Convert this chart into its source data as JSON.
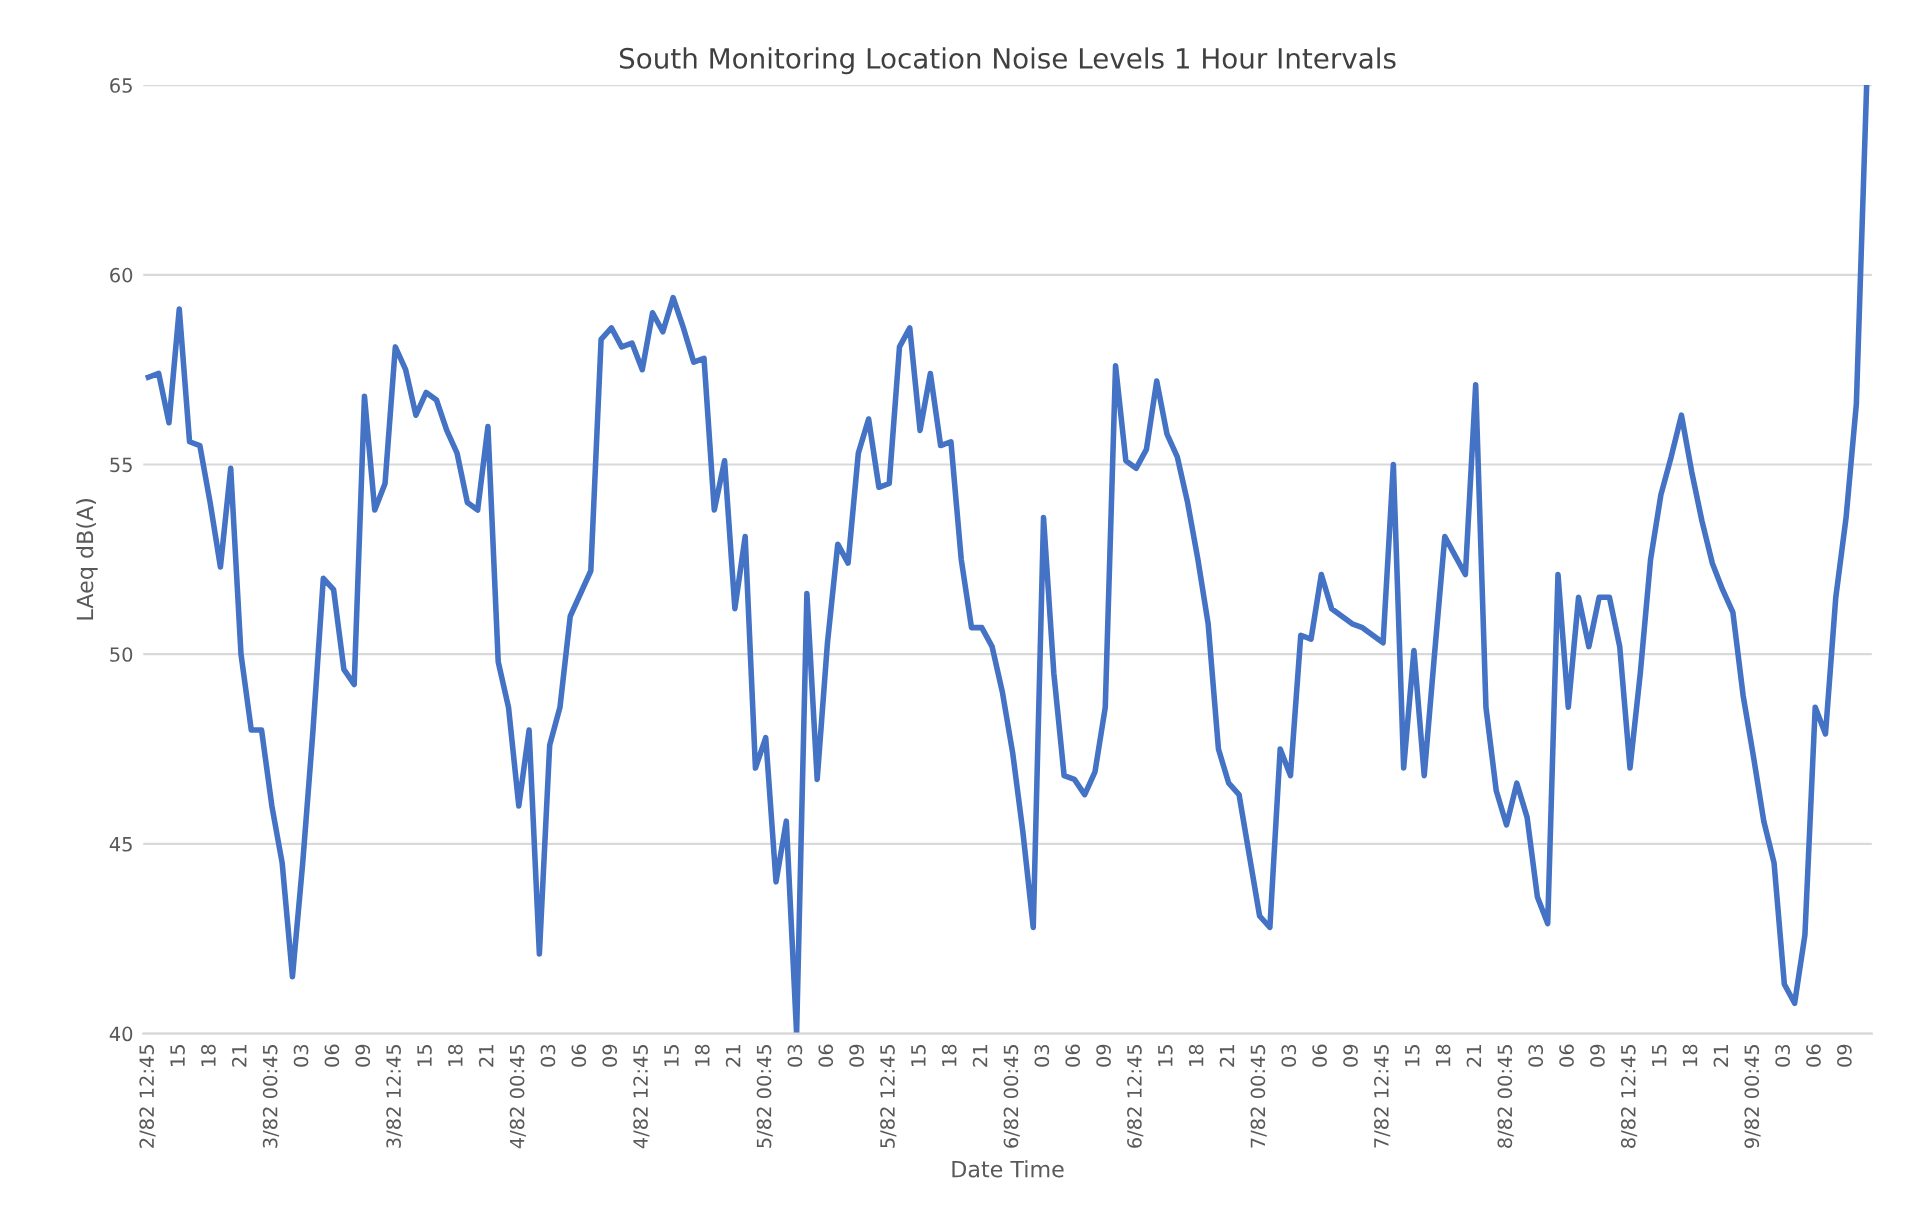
{
  "chart_data": {
    "type": "line",
    "title": "South Monitoring Location Noise Levels 1 Hour Intervals",
    "xlabel": "Date Time",
    "ylabel": "LAeq dB(A)",
    "categories": [
      "2/82 12:45",
      null,
      null,
      "15",
      null,
      null,
      "18",
      null,
      null,
      "21",
      null,
      null,
      "3/82 00:45",
      null,
      null,
      "03",
      null,
      null,
      "06",
      null,
      null,
      "09",
      null,
      null,
      "3/82 12:45",
      null,
      null,
      "15",
      null,
      null,
      "18",
      null,
      null,
      "21",
      null,
      null,
      "4/82 00:45",
      null,
      null,
      "03",
      null,
      null,
      "06",
      null,
      null,
      "09",
      null,
      null,
      "4/82 12:45",
      null,
      null,
      "15",
      null,
      null,
      "18",
      null,
      null,
      "21",
      null,
      null,
      "5/82 00:45",
      null,
      null,
      "03",
      null,
      null,
      "06",
      null,
      null,
      "09",
      null,
      null,
      "5/82 12:45",
      null,
      null,
      "15",
      null,
      null,
      "18",
      null,
      null,
      "21",
      null,
      null,
      "6/82 00:45",
      null,
      null,
      "03",
      null,
      null,
      "06",
      null,
      null,
      "09",
      null,
      null,
      "6/82 12:45",
      null,
      null,
      "15",
      null,
      null,
      "18",
      null,
      null,
      "21",
      null,
      null,
      "7/82 00:45",
      null,
      null,
      "03",
      null,
      null,
      "06",
      null,
      null,
      "09",
      null,
      null,
      "7/82 12:45",
      null,
      null,
      "15",
      null,
      null,
      "18",
      null,
      null,
      "21",
      null,
      null,
      "8/82 00:45",
      null,
      null,
      "03",
      null,
      null,
      "06",
      null,
      null,
      "09",
      null,
      null,
      "8/82 12:45",
      null,
      null,
      "15",
      null,
      null,
      "18",
      null,
      null,
      "21",
      null,
      null,
      "9/82 00:45",
      null,
      null,
      "03",
      null,
      null,
      "06",
      null,
      null,
      "09",
      null,
      null
    ],
    "series": [
      {
        "color": "#4472c4",
        "values": [
          57.3,
          57.4,
          56.1,
          59.1,
          55.6,
          55.5,
          54.0,
          52.3,
          54.9,
          50.0,
          48.0,
          48.0,
          46.0,
          44.5,
          41.5,
          44.5,
          48.0,
          52.0,
          51.7,
          49.6,
          49.2,
          56.8,
          53.8,
          54.5,
          58.1,
          57.5,
          56.3,
          56.9,
          56.7,
          55.9,
          55.3,
          54.0,
          53.8,
          56.0,
          49.8,
          48.6,
          46.0,
          48.0,
          42.1,
          47.6,
          48.6,
          51.0,
          51.6,
          52.2,
          58.3,
          58.6,
          58.1,
          58.2,
          57.5,
          59.0,
          58.5,
          59.4,
          58.6,
          57.7,
          57.8,
          53.8,
          55.1,
          51.2,
          53.1,
          47.0,
          47.8,
          44.0,
          45.6,
          40.0,
          51.6,
          46.7,
          50.3,
          52.9,
          52.4,
          55.3,
          56.2,
          54.4,
          54.5,
          58.1,
          58.6,
          55.9,
          57.4,
          55.5,
          55.6,
          52.5,
          50.7,
          50.7,
          50.2,
          49.0,
          47.4,
          45.3,
          42.8,
          53.6,
          49.5,
          46.8,
          46.7,
          46.3,
          46.9,
          48.6,
          57.6,
          55.1,
          54.9,
          55.4,
          57.2,
          55.8,
          55.2,
          54.0,
          52.5,
          50.8,
          47.5,
          46.6,
          46.3,
          44.7,
          43.1,
          42.8,
          47.5,
          46.8,
          50.5,
          50.4,
          52.1,
          51.2,
          51.0,
          50.8,
          50.7,
          50.5,
          50.3,
          55.0,
          47.0,
          50.1,
          46.8,
          50.0,
          53.1,
          52.6,
          52.1,
          57.1,
          48.6,
          46.4,
          45.5,
          46.6,
          45.7,
          43.6,
          42.9,
          52.1,
          48.6,
          51.5,
          50.2,
          51.5,
          51.5,
          50.2,
          47.0,
          49.5,
          52.5,
          54.2,
          55.2,
          56.3,
          54.8,
          53.5,
          52.4,
          51.7,
          51.1,
          48.9,
          47.3,
          45.6,
          44.5,
          41.3,
          40.8,
          42.6,
          48.6,
          47.9,
          51.5,
          53.6,
          56.6,
          65.0
        ]
      }
    ],
    "ylim": [
      40,
      65
    ],
    "yticks": [
      40,
      45,
      50,
      55,
      60,
      65
    ],
    "grid": "y",
    "marker": "none",
    "line_style": "solid"
  }
}
